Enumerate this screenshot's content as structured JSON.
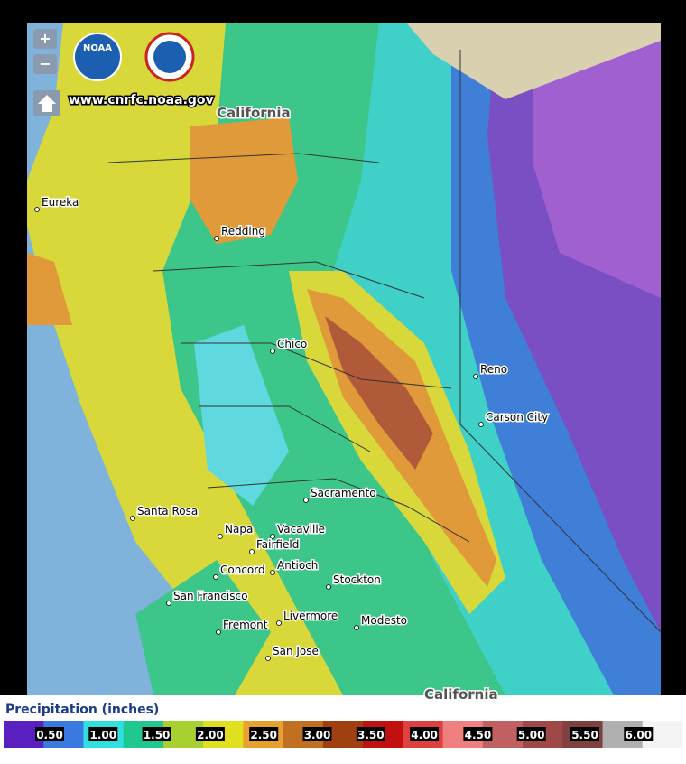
{
  "header": {
    "site": "www.cnrfc.noaa.gov",
    "logo": "NOAA",
    "zoom_in": "+",
    "zoom_out": "−"
  },
  "map": {
    "state_labels": [
      "California",
      "California"
    ],
    "cities": [
      "Eureka",
      "Redding",
      "Chico",
      "Reno",
      "Carson City",
      "Sacramento",
      "Santa Rosa",
      "Napa",
      "Vacaville",
      "Fairfield",
      "Concord",
      "Antioch",
      "Stockton",
      "San Francisco",
      "Fremont",
      "Livermore",
      "Modesto",
      "San Jose"
    ]
  },
  "legend": {
    "title": "Precipitation (inches)",
    "ticks": [
      "0.50",
      "1.00",
      "1.50",
      "2.00",
      "2.50",
      "3.00",
      "3.50",
      "4.00",
      "4.50",
      "5.00",
      "5.50",
      "6.00"
    ]
  }
}
